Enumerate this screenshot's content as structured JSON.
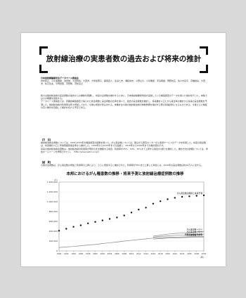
{
  "document": {
    "title": "放射線治療の実患者数の過去および将来の推計",
    "authors_group": "日本放射線腫瘍学会データベース委員会",
    "authors": "中村和正、小久保雅樹、池田恢、大須賀将、大西洋、大熊加惠子、鹿間直人、生島仁史、溝脇尚志、小野山大、小泉雅彦、手島昭樹、岡野友広、佐々木良平、高橋健夫、大西洋、秋元哲夫、平岡眞寛、宇野隆、茂松直之",
    "paragraph_1": "我々は放射線治療の実患者数の過去からの推移を把握し、将来の患者数を推計するために、日本放射線腫瘍学会が実施している構造調査のデータを用いた検討を行った。本稿ではその概要を報告する。",
    "paragraph_2": "データベース委員会では、定期的構造調査で得られた新患者数と実患者数の比率を用いて、過去の実患者数を推計し、将来推計人口とがん罹患率の推計から将来の実患者数を予測した。放射線治療の利用率は年々増加しており、今後も増加が見込まれる。本推計は今後の放射線治療の体制整備を検討する際の基礎資料となるものである。今後さらに精度の高い推計を目指して検討を続ける予定である。",
    "section_ref": "【方　法】",
    "paragraph_3": "放射線治療患者数については、2005-2015年の構造調査の結果を用いた。がん罹患数については、国立がん研究センターがん情報サービスのデータを利用した。将来の罹患数は、将来推計人口と年齢階級別罹患率から推計した。1990年から2015年までの実績と、2016年から2030年までの推計値を示す。",
    "paragraph_4": "将来の放射線治療患者数は、放射線治療の利用率が現状のまま推移する場合、利用率が25%、30%、35%まで上昇する場合の4通りを推計した。推計方法の詳細については、学会ホームページを参照されたい。（http://www.jastro.or.jp/）",
    "section_result": "【結　果】",
    "paragraph_5": "今後の患者数は、がん罹患数の増加と利用率の上昇により、さらに増加すると推計された。利用率が35%まで上昇した場合には、2030年の実患者数は約40万人に達する。",
    "chart_title": "本邦におけるがん罹患数の推移・将来予測と放射線治療症例数の推移"
  },
  "chart_data": {
    "type": "line",
    "x": [
      1990,
      1992,
      1994,
      1996,
      1998,
      2000,
      2002,
      2004,
      2006,
      2008,
      2010,
      2012,
      2014,
      2016,
      2018,
      2020,
      2022,
      2024,
      2026,
      2028,
      2030
    ],
    "xlim": [
      1990,
      2030
    ],
    "ylim": [
      0,
      1400000
    ],
    "yticks": [
      0,
      200000,
      400000,
      600000,
      800000,
      1000000,
      1200000,
      1400000
    ],
    "yunit": "(人)",
    "xunit": "(年)",
    "series": [
      {
        "name": "がん罹患数の推移と将来予測",
        "style": "dots",
        "values": [
          410000,
          450000,
          490000,
          520000,
          560000,
          590000,
          620000,
          650000,
          680000,
          720000,
          780000,
          840000,
          880000,
          960000,
          1010000,
          1050000,
          1080000,
          1100000,
          1110000,
          1120000,
          1130000
        ]
      },
      {
        "name": "がん罹患数×35%",
        "style": "solid",
        "values": [
          null,
          null,
          null,
          null,
          null,
          null,
          null,
          null,
          null,
          null,
          null,
          null,
          null,
          300000,
          320000,
          340000,
          355000,
          365000,
          375000,
          385000,
          395000
        ]
      },
      {
        "name": "がん罹患数×30%",
        "style": "solid",
        "values": [
          null,
          null,
          null,
          null,
          null,
          null,
          null,
          null,
          null,
          null,
          null,
          null,
          null,
          280000,
          295000,
          305000,
          315000,
          322000,
          328000,
          334000,
          340000
        ]
      },
      {
        "name": "放射線治療実患者数",
        "style": "solid",
        "values": [
          70000,
          80000,
          90000,
          105000,
          120000,
          130000,
          150000,
          165000,
          180000,
          200000,
          215000,
          230000,
          245000,
          260000,
          268000,
          275000,
          280000,
          285000,
          288000,
          290000,
          292000
        ]
      },
      {
        "name": "がん罹患数×25%",
        "style": "solid",
        "values": [
          null,
          null,
          null,
          null,
          null,
          null,
          null,
          null,
          null,
          null,
          null,
          null,
          null,
          240000,
          250000,
          260000,
          265000,
          270000,
          275000,
          278000,
          282000
        ]
      }
    ],
    "colors": {
      "dots": "#111111",
      "lines": "#888888",
      "axis": "#555555"
    }
  }
}
